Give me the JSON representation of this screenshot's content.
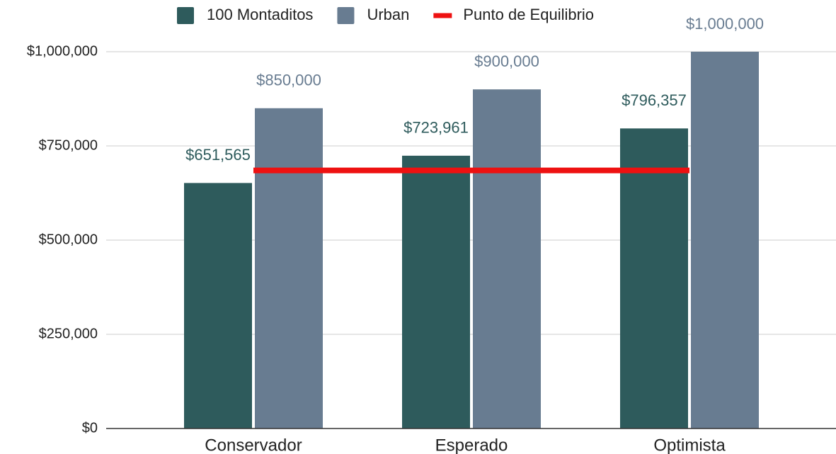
{
  "chart_data": {
    "type": "bar",
    "categories": [
      "Conservador",
      "Esperado",
      "Optimista"
    ],
    "series": [
      {
        "name": "100 Montaditos",
        "color": "#2e5b5c",
        "values": [
          651565,
          723961,
          796357
        ],
        "value_labels": [
          "$651,565",
          "$723,961",
          "$796,357"
        ]
      },
      {
        "name": "Urban",
        "color": "#687c91",
        "values": [
          850000,
          900000,
          1000000
        ],
        "value_labels": [
          "$850,000",
          "$900,000",
          "$1,000,000"
        ]
      },
      {
        "name": "Punto de Equilibrio",
        "type": "line",
        "color": "#ee1111",
        "values": [
          685000,
          685000,
          685000
        ]
      }
    ],
    "ylim": [
      0,
      1000000
    ],
    "yticks": [
      {
        "value": 0,
        "label": "$0"
      },
      {
        "value": 250000,
        "label": "$250,000"
      },
      {
        "value": 500000,
        "label": "$500,000"
      },
      {
        "value": 750000,
        "label": "$750,000"
      },
      {
        "value": 1000000,
        "label": "$1,000,000"
      }
    ],
    "grid": true,
    "legend": "top"
  }
}
